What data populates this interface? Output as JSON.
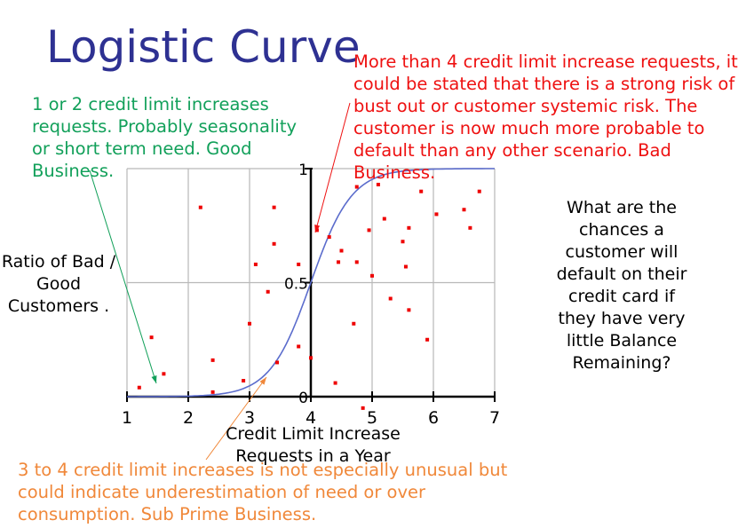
{
  "title": "Logistic Curve",
  "annotations": {
    "good": "1 or 2 credit limit increases requests.  Probably seasonality or short term need. Good Business.",
    "bad": "More than 4 credit limit increase requests, it could be stated that there is a strong risk of bust out or customer systemic risk.  The customer is now much more probable to default than any other scenario.  Bad Business.",
    "subprime": "3 to 4 credit limit increases is not especially unusual but could indicate underestimation of need or over consumption.  Sub Prime Business."
  },
  "y_axis_label": "Ratio of Bad / Good Customers .",
  "question": "What are the chances a customer will default on their credit card if they have very little Balance Remaining?",
  "colors": {
    "title": "#2e3192",
    "curve": "#5b6ccc",
    "points": "#ee0000",
    "good": "#12a05a",
    "bad": "#ee1111",
    "subprime": "#f0883a"
  },
  "chart_data": {
    "type": "scatter",
    "xlabel": "Credit Limit Increase Requests in a Year",
    "ylabel": "Ratio of Bad / Good Customers .",
    "xlim": [
      1,
      7
    ],
    "ylim": [
      0,
      1
    ],
    "x_ticks": [
      "1",
      "2",
      "3",
      "4",
      "5",
      "6",
      "7"
    ],
    "y_ticks": [
      "0",
      "0.5",
      "1"
    ],
    "grid": true,
    "curve": {
      "type": "logistic",
      "midpoint": 4,
      "steepness": 3
    },
    "points": [
      [
        1.2,
        0.04
      ],
      [
        1.4,
        0.26
      ],
      [
        1.6,
        0.1
      ],
      [
        2.2,
        0.83
      ],
      [
        2.4,
        0.16
      ],
      [
        2.4,
        0.02
      ],
      [
        2.9,
        0.07
      ],
      [
        3.0,
        0.32
      ],
      [
        3.1,
        0.58
      ],
      [
        3.3,
        0.46
      ],
      [
        3.4,
        0.83
      ],
      [
        3.4,
        0.67
      ],
      [
        3.45,
        0.15
      ],
      [
        3.8,
        0.58
      ],
      [
        3.8,
        0.22
      ],
      [
        4.0,
        0.17
      ],
      [
        4.1,
        0.73
      ],
      [
        4.3,
        0.7
      ],
      [
        4.4,
        0.06
      ],
      [
        4.45,
        0.59
      ],
      [
        4.5,
        0.64
      ],
      [
        4.7,
        0.32
      ],
      [
        4.75,
        0.92
      ],
      [
        4.75,
        0.59
      ],
      [
        4.85,
        -0.05
      ],
      [
        4.95,
        0.73
      ],
      [
        5.0,
        0.53
      ],
      [
        5.1,
        0.93
      ],
      [
        5.2,
        0.78
      ],
      [
        5.3,
        0.43
      ],
      [
        5.5,
        0.68
      ],
      [
        5.55,
        0.57
      ],
      [
        5.6,
        0.74
      ],
      [
        5.6,
        0.38
      ],
      [
        5.8,
        0.9
      ],
      [
        5.9,
        0.25
      ],
      [
        6.05,
        0.8
      ],
      [
        6.5,
        0.82
      ],
      [
        6.6,
        0.74
      ],
      [
        6.75,
        0.9
      ]
    ]
  }
}
